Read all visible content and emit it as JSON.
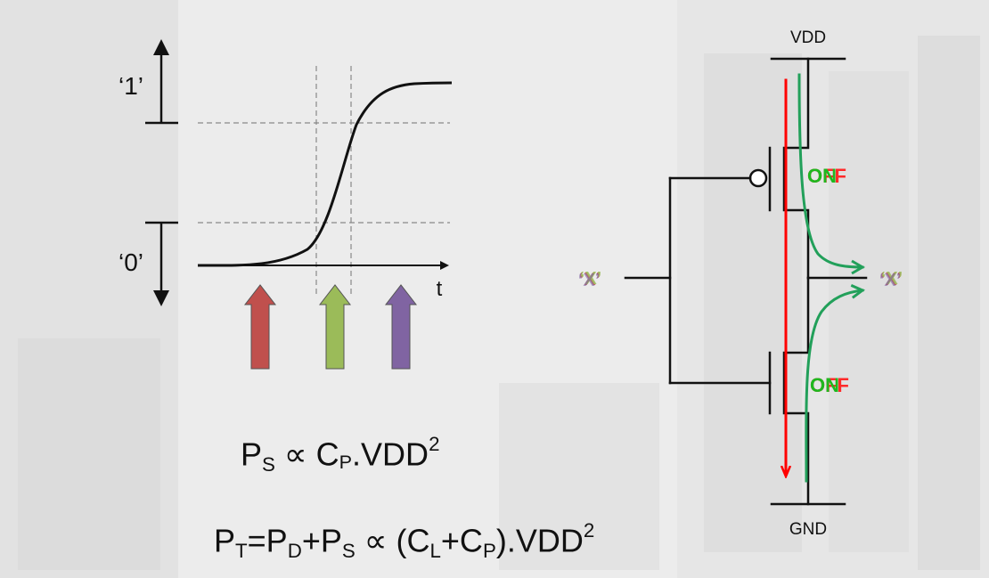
{
  "waveform": {
    "high_label": "‘1’",
    "low_label": "‘0’",
    "time_label": "t",
    "arrows": [
      {
        "name": "before-transition",
        "color": "#c0504d"
      },
      {
        "name": "mid-transition",
        "color": "#9bbb59"
      },
      {
        "name": "after-transition",
        "color": "#8064a2"
      }
    ]
  },
  "inverter": {
    "supply_label": "VDD",
    "ground_label": "GND",
    "input_label": "‘X’",
    "output_label": "‘X’",
    "pmos_state": "ON",
    "nmos_state": "ON",
    "state_overlay": "OFF",
    "short_circuit_color": "#ff0000",
    "charge_current_color": "#22a05a",
    "state_on_color": "#1fb81f",
    "state_off_color": "#ff2a2a"
  },
  "equations": {
    "short_circuit": {
      "p": "P",
      "p_sub": "S",
      "prop": " ∝ ",
      "c": "C",
      "c_sub": "P",
      "rest": ".VDD",
      "sup": "2"
    },
    "total": {
      "p": "P",
      "p_sub": "T",
      "eq1": "=P",
      "d_sub": "D",
      "plus": "+P",
      "s_sub": "S",
      "prop": " ∝ (C",
      "l_sub": "L",
      "plus2": "+C",
      "p2_sub": "P",
      "rest": ").VDD",
      "sup": "2"
    }
  }
}
